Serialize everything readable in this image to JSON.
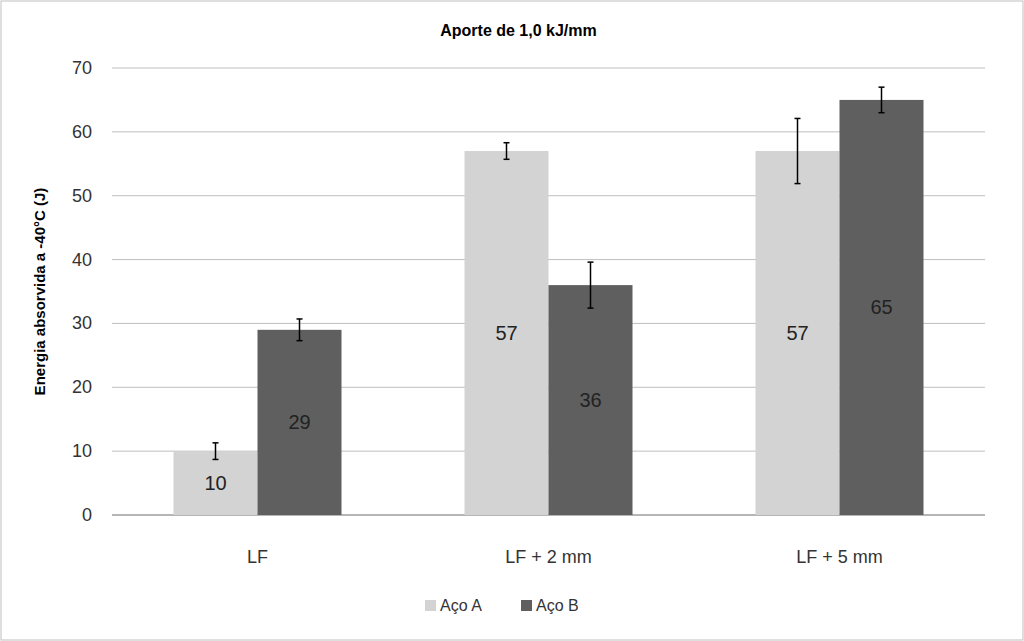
{
  "chart_data": {
    "type": "bar",
    "title": "Aporte de 1,0 kJ/mm",
    "y_label": "Energia absorvida a -40°C (J)",
    "categories": [
      "LF",
      "LF + 2 mm",
      "LF + 5 mm"
    ],
    "series": [
      {
        "name": "Aço A",
        "color": "#d3d3d3",
        "values": [
          10,
          57,
          57
        ],
        "errors": [
          1.3,
          1.3,
          5.1
        ]
      },
      {
        "name": "Aço B",
        "color": "#5f5f5f",
        "values": [
          29,
          36,
          65
        ],
        "errors": [
          1.7,
          3.6,
          2
        ]
      }
    ],
    "ylim": [
      0,
      70
    ],
    "yticks": [
      0,
      10,
      20,
      30,
      40,
      50,
      60,
      70
    ],
    "grid": true,
    "legend": "bottom",
    "data_labels": true
  }
}
